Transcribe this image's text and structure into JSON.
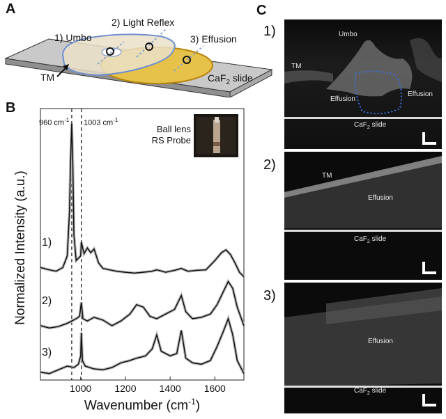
{
  "panels": {
    "a": {
      "letter": "A",
      "labels": {
        "umbo": "1) Umbo",
        "light_reflex": "2) Light Reflex",
        "effusion": "3) Effusion",
        "tm": "TM",
        "slide": "CaF",
        "slide_sub": "2",
        "slide_suffix": " slide"
      }
    },
    "b": {
      "letter": "B",
      "marker_left": "960 cm",
      "marker_right": "1003 cm",
      "marker_unit_sup": "-1",
      "probe_label_line1": "Ball lens",
      "probe_label_line2": "RS Probe",
      "trace_labels": [
        "1)",
        "2)",
        "3)"
      ]
    },
    "c": {
      "letter": "C",
      "rows": [
        {
          "num": "1)",
          "labels": {
            "umbo": "Umbo",
            "tm": "TM",
            "effusion_left": "Effusion",
            "effusion_right": "Effusion",
            "slide": "CaF",
            "slide_sub": "2",
            "slide_suffix": " slide"
          }
        },
        {
          "num": "2)",
          "labels": {
            "tm": "TM",
            "effusion": "Effusion",
            "slide": "CaF",
            "slide_sub": "2",
            "slide_suffix": " slide"
          }
        },
        {
          "num": "3)",
          "labels": {
            "effusion": "Effusion",
            "slide": "CaF",
            "slide_sub": "2",
            "slide_suffix": " slide"
          }
        }
      ]
    }
  },
  "chart_data": {
    "type": "line",
    "xlabel": "Wavenumber (cm",
    "xlabel_sup": "-1",
    "xlabel_close": ")",
    "ylabel": "Normalized Intensity (a.u.)",
    "xlim": [
      820,
      1730
    ],
    "xticks": [
      1000,
      1200,
      1400,
      1600
    ],
    "vlines": [
      960,
      1003
    ],
    "series": [
      {
        "name": "1)",
        "offset": 2.0,
        "x": [
          820,
          860,
          890,
          920,
          940,
          950,
          955,
          960,
          965,
          970,
          980,
          1000,
          1003,
          1015,
          1030,
          1045,
          1060,
          1080,
          1100,
          1130,
          1160,
          1200,
          1240,
          1280,
          1320,
          1340,
          1380,
          1420,
          1450,
          1480,
          1520,
          1560,
          1600,
          1630,
          1650,
          1670,
          1690,
          1710,
          1730
        ],
        "y": [
          0.3,
          0.25,
          0.22,
          0.3,
          0.55,
          1.5,
          2.6,
          3.4,
          2.5,
          1.0,
          0.45,
          0.55,
          0.85,
          0.6,
          0.72,
          0.62,
          0.7,
          0.4,
          0.28,
          0.25,
          0.22,
          0.2,
          0.18,
          0.2,
          0.22,
          0.25,
          0.2,
          0.24,
          0.28,
          0.22,
          0.24,
          0.25,
          0.45,
          0.62,
          0.68,
          0.58,
          0.4,
          0.2,
          0.1
        ]
      },
      {
        "name": "2)",
        "offset": 0.95,
        "x": [
          820,
          860,
          900,
          940,
          960,
          980,
          995,
          1003,
          1010,
          1030,
          1060,
          1100,
          1140,
          1180,
          1220,
          1250,
          1280,
          1310,
          1340,
          1380,
          1420,
          1450,
          1470,
          1500,
          1540,
          1580,
          1610,
          1640,
          1660,
          1680,
          1700,
          1730
        ],
        "y": [
          0.1,
          0.05,
          0.08,
          0.15,
          0.2,
          0.25,
          0.3,
          0.6,
          0.25,
          0.2,
          0.28,
          0.22,
          0.1,
          0.2,
          0.35,
          0.55,
          0.5,
          0.3,
          0.25,
          0.35,
          0.45,
          0.75,
          0.4,
          0.25,
          0.28,
          0.35,
          0.55,
          0.85,
          1.05,
          0.9,
          0.5,
          0.1
        ]
      },
      {
        "name": "3)",
        "offset": 0.0,
        "x": [
          820,
          860,
          900,
          940,
          970,
          990,
          1000,
          1003,
          1008,
          1020,
          1060,
          1100,
          1140,
          1180,
          1220,
          1250,
          1290,
          1320,
          1340,
          1360,
          1400,
          1430,
          1450,
          1470,
          1500,
          1540,
          1580,
          1610,
          1640,
          1660,
          1680,
          1700,
          1730
        ],
        "y": [
          0.05,
          0.02,
          0.1,
          0.18,
          0.15,
          0.22,
          0.4,
          0.9,
          0.3,
          0.18,
          0.12,
          0.1,
          0.15,
          0.25,
          0.3,
          0.35,
          0.4,
          0.55,
          0.85,
          0.5,
          0.4,
          0.45,
          0.95,
          0.35,
          0.25,
          0.22,
          0.3,
          0.6,
          0.95,
          1.2,
          0.85,
          0.3,
          0.02
        ]
      }
    ]
  }
}
